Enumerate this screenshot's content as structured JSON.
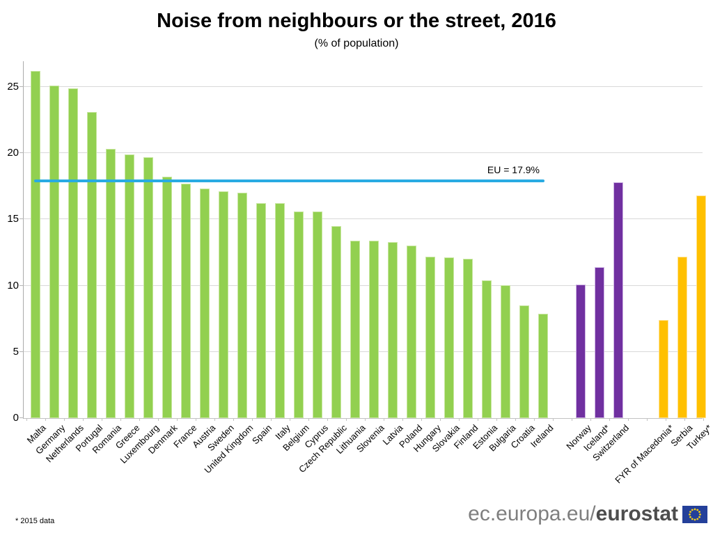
{
  "title": "Noise from neighbours or the street, 2016",
  "subtitle": "(% of population)",
  "footnote": "* 2015 data",
  "branding": {
    "url_regular": "ec.europa.eu/",
    "url_bold": "eurostat",
    "flag_icon": "eu-flag-icon"
  },
  "chart_data": {
    "type": "bar",
    "title": "Noise from neighbours or the street, 2016",
    "subtitle": "(% of population)",
    "xlabel": "",
    "ylabel": "% of population",
    "ylim": [
      0,
      26.9
    ],
    "yticks": [
      0,
      5,
      10,
      15,
      20,
      25
    ],
    "grid": "horizontal",
    "reference_line": {
      "label": "EU = 17.9%",
      "value": 17.9,
      "color": "#29abe2"
    },
    "groups": [
      {
        "name": "eu-members",
        "color": "#92d050",
        "edge_color": "#c8e6a0",
        "bars": [
          {
            "label": "Malta",
            "value": 26.2
          },
          {
            "label": "Germany",
            "value": 25.1
          },
          {
            "label": "Netherlands",
            "value": 24.9
          },
          {
            "label": "Portugal",
            "value": 23.1
          },
          {
            "label": "Romania",
            "value": 20.3
          },
          {
            "label": "Greece",
            "value": 19.9
          },
          {
            "label": "Luxembourg",
            "value": 19.7
          },
          {
            "label": "Denmark",
            "value": 18.2
          },
          {
            "label": "France",
            "value": 17.7
          },
          {
            "label": "Austria",
            "value": 17.3
          },
          {
            "label": "Sweden",
            "value": 17.1
          },
          {
            "label": "United Kingdom",
            "value": 17.0
          },
          {
            "label": "Spain",
            "value": 16.2
          },
          {
            "label": "Italy",
            "value": 16.2
          },
          {
            "label": "Belgium",
            "value": 15.6
          },
          {
            "label": "Cyprus",
            "value": 15.6
          },
          {
            "label": "Czech Republic",
            "value": 14.5
          },
          {
            "label": "Lithuania",
            "value": 13.4
          },
          {
            "label": "Slovenia",
            "value": 13.4
          },
          {
            "label": "Latvia",
            "value": 13.3
          },
          {
            "label": "Poland",
            "value": 13.0
          },
          {
            "label": "Hungary",
            "value": 12.2
          },
          {
            "label": "Slovakia",
            "value": 12.1
          },
          {
            "label": "Finland",
            "value": 12.0
          },
          {
            "label": "Estonia",
            "value": 10.4
          },
          {
            "label": "Bulgaria",
            "value": 10.0
          },
          {
            "label": "Croatia",
            "value": 8.5
          },
          {
            "label": "Ireland",
            "value": 7.9
          }
        ]
      },
      {
        "name": "efta-countries",
        "color": "#7030a0",
        "edge_color": "#cdb3e3",
        "bars": [
          {
            "label": "Norway",
            "value": 10.1
          },
          {
            "label": "Iceland*",
            "value": 11.4
          },
          {
            "label": "Switzerland",
            "value": 17.8
          }
        ]
      },
      {
        "name": "candidate-countries",
        "color": "#ffc000",
        "edge_color": "#ffe293",
        "bars": [
          {
            "label": "FYR of Macedonia*",
            "value": 7.4
          },
          {
            "label": "Serbia",
            "value": 12.2
          },
          {
            "label": "Turkey*",
            "value": 16.8
          }
        ]
      }
    ]
  }
}
